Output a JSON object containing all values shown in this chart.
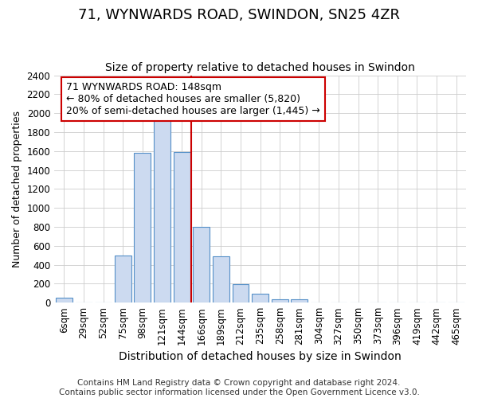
{
  "title": "71, WYNWARDS ROAD, SWINDON, SN25 4ZR",
  "subtitle": "Size of property relative to detached houses in Swindon",
  "xlabel": "Distribution of detached houses by size in Swindon",
  "ylabel": "Number of detached properties",
  "categories": [
    "6sqm",
    "29sqm",
    "52sqm",
    "75sqm",
    "98sqm",
    "121sqm",
    "144sqm",
    "166sqm",
    "189sqm",
    "212sqm",
    "235sqm",
    "258sqm",
    "281sqm",
    "304sqm",
    "327sqm",
    "350sqm",
    "373sqm",
    "396sqm",
    "419sqm",
    "442sqm",
    "465sqm"
  ],
  "bar_heights": [
    50,
    0,
    0,
    500,
    1580,
    1950,
    1590,
    800,
    490,
    195,
    90,
    35,
    35,
    0,
    0,
    0,
    0,
    0,
    0,
    0,
    0
  ],
  "bar_color": "#ccdaf0",
  "bar_edge_color": "#5590c8",
  "vline_color": "#cc0000",
  "annotation_text": "71 WYNWARDS ROAD: 148sqm\n← 80% of detached houses are smaller (5,820)\n20% of semi-detached houses are larger (1,445) →",
  "annotation_box_color": "#ffffff",
  "annotation_box_edge_color": "#cc0000",
  "grid_color": "#cccccc",
  "background_color": "#ffffff",
  "ylim": [
    0,
    2400
  ],
  "yticks": [
    0,
    200,
    400,
    600,
    800,
    1000,
    1200,
    1400,
    1600,
    1800,
    2000,
    2200,
    2400
  ],
  "title_fontsize": 13,
  "subtitle_fontsize": 10,
  "xlabel_fontsize": 10,
  "ylabel_fontsize": 9,
  "tick_fontsize": 8.5,
  "annotation_fontsize": 9,
  "footer_fontsize": 7.5,
  "footer": "Contains HM Land Registry data © Crown copyright and database right 2024.\nContains public sector information licensed under the Open Government Licence v3.0."
}
